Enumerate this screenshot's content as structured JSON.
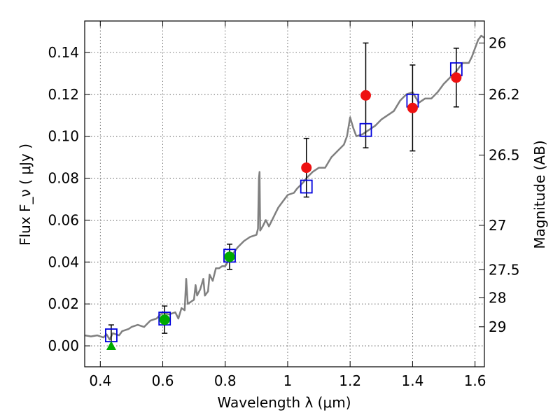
{
  "chart_data": {
    "type": "scatter",
    "xlabel": "Wavelength  λ (μm)",
    "ylabel": "Flux  F_ν  ( μJy )",
    "right_ylabel": "Magnitude (AB)",
    "xlim": [
      0.35,
      1.63
    ],
    "ylim": [
      -0.01,
      0.155
    ],
    "xticks": [
      0.4,
      0.6,
      0.8,
      1.0,
      1.2,
      1.4,
      1.6
    ],
    "xtick_labels": [
      "0.4",
      "0.6",
      "0.8",
      "1",
      "1.2",
      "1.4",
      "1.6"
    ],
    "yticks": [
      0.0,
      0.02,
      0.04,
      0.06,
      0.08,
      0.1,
      0.12,
      0.14
    ],
    "ytick_labels": [
      "0.00",
      "0.02",
      "0.04",
      "0.06",
      "0.08",
      "0.10",
      "0.12",
      "0.14"
    ],
    "magnitude_ticks": [
      {
        "label": "26",
        "flux": 0.1445
      },
      {
        "label": "26.2",
        "flux": 0.12
      },
      {
        "label": "26.5",
        "flux": 0.091
      },
      {
        "label": "27",
        "flux": 0.0575
      },
      {
        "label": "27.5",
        "flux": 0.0363
      },
      {
        "label": "28",
        "flux": 0.0229
      },
      {
        "label": "29",
        "flux": 0.0091
      }
    ],
    "grid": true,
    "series": [
      {
        "kind": "model_spectrum",
        "color": "#808080",
        "points": [
          [
            0.35,
            0.005
          ],
          [
            0.37,
            0.0045
          ],
          [
            0.39,
            0.005
          ],
          [
            0.41,
            0.004
          ],
          [
            0.42,
            0.0055
          ],
          [
            0.43,
            0.003
          ],
          [
            0.44,
            0.006
          ],
          [
            0.46,
            0.005
          ],
          [
            0.47,
            0.007
          ],
          [
            0.49,
            0.008
          ],
          [
            0.5,
            0.009
          ],
          [
            0.52,
            0.01
          ],
          [
            0.54,
            0.009
          ],
          [
            0.56,
            0.012
          ],
          [
            0.58,
            0.013
          ],
          [
            0.6,
            0.016
          ],
          [
            0.62,
            0.015
          ],
          [
            0.64,
            0.016
          ],
          [
            0.65,
            0.013
          ],
          [
            0.66,
            0.018
          ],
          [
            0.67,
            0.017
          ],
          [
            0.675,
            0.032
          ],
          [
            0.68,
            0.02
          ],
          [
            0.7,
            0.022
          ],
          [
            0.705,
            0.029
          ],
          [
            0.71,
            0.024
          ],
          [
            0.72,
            0.027
          ],
          [
            0.73,
            0.032
          ],
          [
            0.735,
            0.024
          ],
          [
            0.745,
            0.026
          ],
          [
            0.75,
            0.034
          ],
          [
            0.76,
            0.031
          ],
          [
            0.77,
            0.037
          ],
          [
            0.78,
            0.037
          ],
          [
            0.79,
            0.038
          ],
          [
            0.8,
            0.038
          ],
          [
            0.82,
            0.043
          ],
          [
            0.84,
            0.047
          ],
          [
            0.86,
            0.05
          ],
          [
            0.88,
            0.052
          ],
          [
            0.9,
            0.053
          ],
          [
            0.905,
            0.056
          ],
          [
            0.908,
            0.08
          ],
          [
            0.91,
            0.083
          ],
          [
            0.912,
            0.055
          ],
          [
            0.92,
            0.057
          ],
          [
            0.93,
            0.06
          ],
          [
            0.94,
            0.057
          ],
          [
            0.95,
            0.06
          ],
          [
            0.96,
            0.063
          ],
          [
            0.97,
            0.066
          ],
          [
            0.98,
            0.068
          ],
          [
            0.99,
            0.07
          ],
          [
            1.0,
            0.072
          ],
          [
            1.02,
            0.073
          ],
          [
            1.03,
            0.075
          ],
          [
            1.05,
            0.078
          ],
          [
            1.06,
            0.08
          ],
          [
            1.08,
            0.083
          ],
          [
            1.1,
            0.085
          ],
          [
            1.12,
            0.085
          ],
          [
            1.14,
            0.09
          ],
          [
            1.16,
            0.093
          ],
          [
            1.18,
            0.096
          ],
          [
            1.19,
            0.1
          ],
          [
            1.2,
            0.109
          ],
          [
            1.21,
            0.104
          ],
          [
            1.22,
            0.1
          ],
          [
            1.24,
            0.101
          ],
          [
            1.26,
            0.103
          ],
          [
            1.28,
            0.105
          ],
          [
            1.3,
            0.108
          ],
          [
            1.32,
            0.11
          ],
          [
            1.34,
            0.112
          ],
          [
            1.36,
            0.117
          ],
          [
            1.38,
            0.12
          ],
          [
            1.4,
            0.121
          ],
          [
            1.42,
            0.116
          ],
          [
            1.44,
            0.118
          ],
          [
            1.46,
            0.118
          ],
          [
            1.48,
            0.121
          ],
          [
            1.5,
            0.125
          ],
          [
            1.52,
            0.128
          ],
          [
            1.54,
            0.131
          ],
          [
            1.56,
            0.135
          ],
          [
            1.58,
            0.135
          ],
          [
            1.59,
            0.138
          ],
          [
            1.6,
            0.142
          ],
          [
            1.61,
            0.146
          ],
          [
            1.62,
            0.148
          ],
          [
            1.63,
            0.147
          ]
        ]
      },
      {
        "kind": "model_photometry",
        "marker": "open-square",
        "color": "#0000dd",
        "x": [
          0.435,
          0.606,
          0.814,
          1.06,
          1.25,
          1.4,
          1.54
        ],
        "y": [
          0.005,
          0.013,
          0.043,
          0.076,
          0.103,
          0.117,
          0.132
        ]
      },
      {
        "kind": "observed_photometry",
        "marker": "circle",
        "color": "#00aa00",
        "x": [
          0.606,
          0.814
        ],
        "y": [
          0.0125,
          0.0425
        ],
        "err": [
          0.0065,
          0.006
        ]
      },
      {
        "kind": "observed_photometry",
        "marker": "circle",
        "color": "#ee1111",
        "x": [
          1.06,
          1.25,
          1.4,
          1.54
        ],
        "y": [
          0.085,
          0.1195,
          0.1135,
          0.128
        ],
        "err": [
          0.014,
          0.025,
          0.0205,
          0.014
        ]
      },
      {
        "kind": "upper_limit",
        "marker": "triangle",
        "color": "#00aa00",
        "x": [
          0.435
        ],
        "y": [
          0.0
        ],
        "err_up": [
          0.01
        ]
      }
    ]
  }
}
